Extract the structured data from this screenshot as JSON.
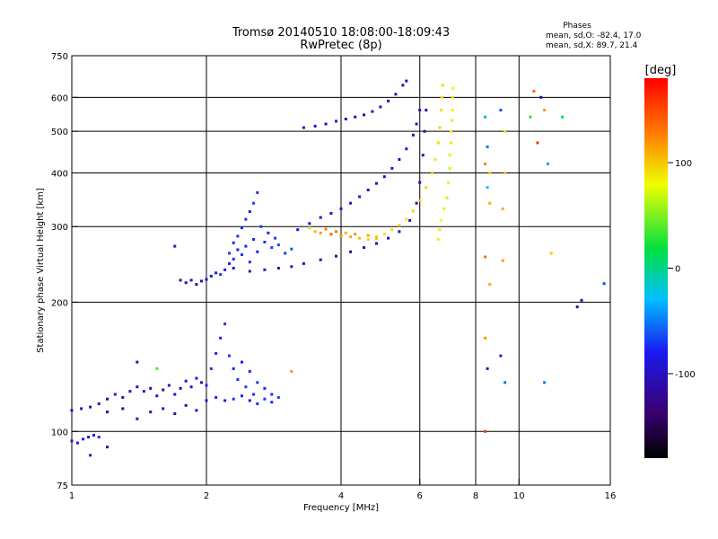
{
  "header": {
    "title_line1": "Tromsø 20140510 18:08:00-18:09:43",
    "title_line2": "RwPretec (8p)",
    "phase_heading": "Phases",
    "phase_o": "mean, sd,O: -82.4, 17.0",
    "phase_x": "mean, sd,X:  89.7, 21.4"
  },
  "colorbar": {
    "unit_label": "[deg]",
    "ticks": [
      {
        "label": "100",
        "value": 100
      },
      {
        "label": "0",
        "value": 0
      },
      {
        "label": "-100",
        "value": -100
      }
    ],
    "range": [
      -180,
      180
    ]
  },
  "chart_data": {
    "type": "scatter",
    "title": "Tromsø 20140510 18:08:00-18:09:43",
    "subtitle": "RwPretec (8p)",
    "xlabel": "Frequency [MHz]",
    "ylabel": "Stationary phase Virtual Height [km]",
    "x_scale": "log",
    "y_scale": "log",
    "xlim": [
      1,
      16
    ],
    "ylim": [
      75,
      750
    ],
    "x_ticks": [
      {
        "label": "1",
        "value": 1
      },
      {
        "label": "2",
        "value": 2
      },
      {
        "label": "4",
        "value": 4
      },
      {
        "label": "6",
        "value": 6
      },
      {
        "label": "8",
        "value": 8
      },
      {
        "label": "10",
        "value": 10
      },
      {
        "label": "16",
        "value": 16
      }
    ],
    "y_ticks": [
      {
        "label": "75",
        "value": 75
      },
      {
        "label": "100",
        "value": 100
      },
      {
        "label": "200",
        "value": 200
      },
      {
        "label": "300",
        "value": 300
      },
      {
        "label": "400",
        "value": 400
      },
      {
        "label": "500",
        "value": 500
      },
      {
        "label": "600",
        "value": 600
      },
      {
        "label": "750",
        "value": 750
      }
    ],
    "grid_x": [
      2,
      4,
      6,
      8,
      10
    ],
    "grid_y": [
      100,
      200,
      300,
      400,
      500,
      600
    ],
    "grid": true,
    "color_by": "phase (deg)",
    "series": [
      {
        "values": [
          [
            1.0,
            95,
            -110
          ],
          [
            1.03,
            94,
            -105
          ],
          [
            1.06,
            96,
            -100
          ],
          [
            1.09,
            97,
            -110
          ],
          [
            1.12,
            98,
            -105
          ],
          [
            1.15,
            97,
            -95
          ],
          [
            1.0,
            112,
            -115
          ],
          [
            1.05,
            113,
            -110
          ],
          [
            1.1,
            114,
            -120
          ],
          [
            1.15,
            116,
            -115
          ],
          [
            1.2,
            119,
            -125
          ],
          [
            1.25,
            122,
            -110
          ],
          [
            1.3,
            120,
            -120
          ],
          [
            1.35,
            124,
            -115
          ],
          [
            1.4,
            127,
            -120
          ],
          [
            1.45,
            124,
            -110
          ],
          [
            1.5,
            126,
            -125
          ],
          [
            1.55,
            121,
            -115
          ],
          [
            1.6,
            125,
            -120
          ],
          [
            1.65,
            128,
            -110
          ],
          [
            1.7,
            122,
            -115
          ],
          [
            1.75,
            126,
            -120
          ],
          [
            1.8,
            131,
            -110
          ],
          [
            1.85,
            127,
            -115
          ],
          [
            1.9,
            133,
            -105
          ],
          [
            1.95,
            130,
            -110
          ],
          [
            2.0,
            128,
            -100
          ],
          [
            1.2,
            111,
            -120
          ],
          [
            1.3,
            113,
            -125
          ],
          [
            1.4,
            107,
            -115
          ],
          [
            1.5,
            111,
            -120
          ],
          [
            1.6,
            113,
            -115
          ],
          [
            1.7,
            110,
            -125
          ],
          [
            1.8,
            115,
            -120
          ],
          [
            1.9,
            112,
            -110
          ],
          [
            2.0,
            118,
            -115
          ],
          [
            2.0,
            128,
            -95
          ],
          [
            2.05,
            140,
            -90
          ],
          [
            2.1,
            152,
            -95
          ],
          [
            2.15,
            165,
            -100
          ],
          [
            2.2,
            178,
            -90
          ],
          [
            2.25,
            150,
            -85
          ],
          [
            2.3,
            140,
            -95
          ],
          [
            2.35,
            132,
            -90
          ],
          [
            2.4,
            145,
            -100
          ],
          [
            2.45,
            127,
            -85
          ],
          [
            2.5,
            138,
            -95
          ],
          [
            2.55,
            122,
            -90
          ],
          [
            2.6,
            130,
            -85
          ],
          [
            2.7,
            126,
            -95
          ],
          [
            2.8,
            122,
            -90
          ],
          [
            2.9,
            120,
            -80
          ],
          [
            2.1,
            120,
            -95
          ],
          [
            2.2,
            118,
            -100
          ],
          [
            2.3,
            119,
            -90
          ],
          [
            2.4,
            121,
            -95
          ],
          [
            2.5,
            118,
            -100
          ],
          [
            2.6,
            116,
            -90
          ],
          [
            2.7,
            119,
            -85
          ],
          [
            2.8,
            117,
            -95
          ],
          [
            2.15,
            232,
            -90
          ],
          [
            2.2,
            238,
            -100
          ],
          [
            2.25,
            246,
            -95
          ],
          [
            2.25,
            260,
            -85
          ],
          [
            2.3,
            252,
            -90
          ],
          [
            2.3,
            275,
            -95
          ],
          [
            2.35,
            265,
            -100
          ],
          [
            2.35,
            285,
            -90
          ],
          [
            2.4,
            298,
            -95
          ],
          [
            2.4,
            258,
            -85
          ],
          [
            2.45,
            312,
            -90
          ],
          [
            2.45,
            270,
            -95
          ],
          [
            2.5,
            325,
            -100
          ],
          [
            2.5,
            248,
            -90
          ],
          [
            2.55,
            340,
            -85
          ],
          [
            2.55,
            280,
            -95
          ],
          [
            2.6,
            360,
            -90
          ],
          [
            2.6,
            262,
            -95
          ],
          [
            2.65,
            300,
            -85
          ],
          [
            2.7,
            276,
            -90
          ],
          [
            2.75,
            290,
            -95
          ],
          [
            2.8,
            268,
            -85
          ],
          [
            2.85,
            282,
            -90
          ],
          [
            2.9,
            272,
            -80
          ],
          [
            3.0,
            260,
            -85
          ],
          [
            3.1,
            266,
            -75
          ],
          [
            1.8,
            222,
            -120
          ],
          [
            1.85,
            225,
            -115
          ],
          [
            1.9,
            220,
            -125
          ],
          [
            1.95,
            224,
            -120
          ],
          [
            2.0,
            226,
            -115
          ],
          [
            2.05,
            230,
            -110
          ],
          [
            2.1,
            234,
            -115
          ],
          [
            2.3,
            240,
            -110
          ],
          [
            2.5,
            236,
            -115
          ],
          [
            2.7,
            238,
            -110
          ],
          [
            2.9,
            240,
            -115
          ],
          [
            3.1,
            242,
            -110
          ],
          [
            3.3,
            246,
            -115
          ],
          [
            3.6,
            251,
            -120
          ],
          [
            3.9,
            256,
            -115
          ],
          [
            4.2,
            262,
            -120
          ],
          [
            4.5,
            268,
            -115
          ],
          [
            4.8,
            274,
            -120
          ],
          [
            5.1,
            282,
            -115
          ],
          [
            5.4,
            292,
            -120
          ],
          [
            5.7,
            310,
            -115
          ],
          [
            5.9,
            340,
            -120
          ],
          [
            6.0,
            380,
            -125
          ],
          [
            6.1,
            440,
            -120
          ],
          [
            6.15,
            500,
            -125
          ],
          [
            6.2,
            560,
            -120
          ],
          [
            3.2,
            295,
            -110
          ],
          [
            3.4,
            305,
            -105
          ],
          [
            3.6,
            315,
            -110
          ],
          [
            3.8,
            322,
            -115
          ],
          [
            4.0,
            330,
            -110
          ],
          [
            4.2,
            340,
            -115
          ],
          [
            4.4,
            352,
            -110
          ],
          [
            4.6,
            365,
            -115
          ],
          [
            4.8,
            378,
            -110
          ],
          [
            5.0,
            392,
            -115
          ],
          [
            5.2,
            410,
            -110
          ],
          [
            5.4,
            430,
            -115
          ],
          [
            5.6,
            455,
            -110
          ],
          [
            5.8,
            490,
            -115
          ],
          [
            5.9,
            520,
            -110
          ],
          [
            6.0,
            560,
            -115
          ],
          [
            3.3,
            510,
            -115
          ],
          [
            3.5,
            514,
            -110
          ],
          [
            3.7,
            520,
            -115
          ],
          [
            3.9,
            528,
            -110
          ],
          [
            4.1,
            534,
            -115
          ],
          [
            4.3,
            540,
            -120
          ],
          [
            4.5,
            546,
            -115
          ],
          [
            4.7,
            556,
            -110
          ],
          [
            4.9,
            570,
            -115
          ],
          [
            5.1,
            588,
            -110
          ],
          [
            5.3,
            610,
            -115
          ],
          [
            5.5,
            640,
            -120
          ],
          [
            5.6,
            655,
            -115
          ],
          [
            3.4,
            298,
            100
          ],
          [
            3.5,
            292,
            110
          ],
          [
            3.6,
            290,
            120
          ],
          [
            3.7,
            296,
            130
          ],
          [
            3.8,
            288,
            140
          ],
          [
            3.9,
            292,
            135
          ],
          [
            4.0,
            286,
            120
          ],
          [
            4.1,
            290,
            110
          ],
          [
            4.2,
            284,
            115
          ],
          [
            4.3,
            288,
            125
          ],
          [
            4.4,
            282,
            110
          ],
          [
            4.6,
            286,
            120
          ],
          [
            4.8,
            281,
            105
          ],
          [
            4.6,
            280,
            95
          ],
          [
            4.8,
            284,
            100
          ],
          [
            5.0,
            288,
            90
          ],
          [
            5.2,
            295,
            95
          ],
          [
            5.4,
            302,
            100
          ],
          [
            5.6,
            312,
            90
          ],
          [
            5.8,
            326,
            95
          ],
          [
            6.0,
            345,
            100
          ],
          [
            6.2,
            370,
            95
          ],
          [
            6.4,
            400,
            100
          ],
          [
            6.5,
            430,
            90
          ],
          [
            6.6,
            470,
            95
          ],
          [
            6.65,
            510,
            100
          ],
          [
            6.7,
            560,
            95
          ],
          [
            6.72,
            600,
            90
          ],
          [
            6.75,
            640,
            95
          ],
          [
            6.6,
            280,
            85
          ],
          [
            6.65,
            295,
            90
          ],
          [
            6.7,
            310,
            80
          ],
          [
            6.8,
            330,
            85
          ],
          [
            6.9,
            350,
            90
          ],
          [
            6.95,
            380,
            85
          ],
          [
            7.0,
            410,
            90
          ],
          [
            7.0,
            440,
            85
          ],
          [
            7.05,
            470,
            90
          ],
          [
            7.05,
            500,
            85
          ],
          [
            7.08,
            530,
            90
          ],
          [
            7.1,
            560,
            85
          ],
          [
            7.1,
            600,
            90
          ],
          [
            7.12,
            630,
            85
          ],
          [
            8.4,
            100,
            160
          ],
          [
            8.5,
            140,
            -110
          ],
          [
            8.4,
            165,
            120
          ],
          [
            8.4,
            420,
            130
          ],
          [
            8.5,
            460,
            -60
          ],
          [
            8.6,
            400,
            100
          ],
          [
            8.5,
            370,
            -30
          ],
          [
            8.6,
            340,
            110
          ],
          [
            8.4,
            255,
            140
          ],
          [
            8.6,
            220,
            115
          ],
          [
            8.4,
            540,
            -40
          ],
          [
            9.1,
            150,
            -100
          ],
          [
            9.2,
            250,
            120
          ],
          [
            9.2,
            330,
            110
          ],
          [
            9.3,
            500,
            90
          ],
          [
            9.1,
            560,
            -80
          ],
          [
            9.3,
            400,
            100
          ],
          [
            9.3,
            130,
            -60
          ],
          [
            10.8,
            620,
            140
          ],
          [
            10.6,
            540,
            30
          ],
          [
            11.0,
            470,
            160
          ],
          [
            11.2,
            600,
            -120
          ],
          [
            11.4,
            560,
            120
          ],
          [
            11.4,
            130,
            -60
          ],
          [
            11.6,
            420,
            -40
          ],
          [
            11.8,
            260,
            100
          ],
          [
            12.5,
            540,
            20
          ],
          [
            13.5,
            195,
            -130
          ],
          [
            13.8,
            202,
            -120
          ],
          [
            15.5,
            221,
            -80
          ],
          [
            1.1,
            88,
            -120
          ],
          [
            1.2,
            92,
            -115
          ],
          [
            1.4,
            145,
            -120
          ],
          [
            1.55,
            140,
            40
          ],
          [
            1.7,
            270,
            -110
          ],
          [
            1.75,
            225,
            -120
          ],
          [
            3.1,
            138,
            120
          ]
        ]
      }
    ]
  }
}
